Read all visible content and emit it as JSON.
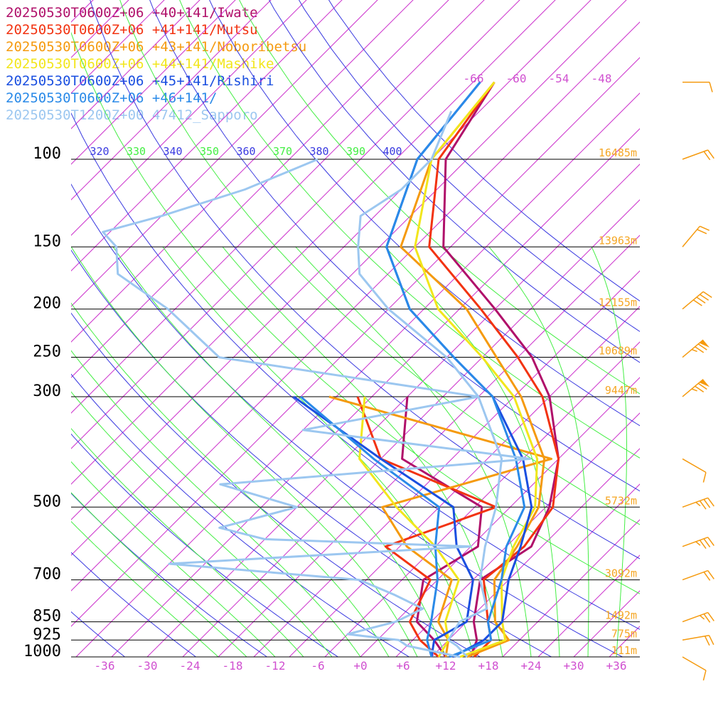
{
  "legend": [
    {
      "label": "20250530T0600Z+06 +40+141/Iwate",
      "color": "#b0106a"
    },
    {
      "label": "20250530T0600Z+06 +41+141/Mutsu",
      "color": "#f23311"
    },
    {
      "label": "20250530T0600Z+06 +43+141/Noboribetsu",
      "color": "#f59a0e"
    },
    {
      "label": "20250530T0600Z+06 +44+141/Mashike",
      "color": "#f2e61c"
    },
    {
      "label": "20250530T0600Z+06 +45+141/Rishiri",
      "color": "#1a4fe0"
    },
    {
      "label": "20250530T0600Z+06 +46+141/",
      "color": "#2a8ae8"
    },
    {
      "label": "20250530T1200Z+00 47412_Sapporo",
      "color": "#9cc7f0"
    }
  ],
  "chart_data": {
    "type": "line",
    "title": "",
    "xlabel": "",
    "ylabel": "",
    "pressure_ticks": [
      100,
      150,
      200,
      250,
      300,
      500,
      700,
      850,
      925,
      1000
    ],
    "height_labels": [
      "16485m",
      "13963m",
      "12155m",
      "10689m",
      "9447m",
      "5732m",
      "3092m",
      "1492m",
      "775m",
      "111m"
    ],
    "temperature_ticks": [
      "-36",
      "-30",
      "-24",
      "-18",
      "-12",
      "-6",
      "+0",
      "+6",
      "+12",
      "+18",
      "+24",
      "+30",
      "+36"
    ],
    "xlim": [
      -40,
      40
    ],
    "theta_labels": [
      "320",
      "330",
      "340",
      "350",
      "360",
      "370",
      "380",
      "390",
      "400"
    ],
    "top_temp_labels": [
      "-66",
      "-60",
      "-54",
      "-48"
    ],
    "grid": true,
    "colors": {
      "isotherm": "#cc33cc",
      "dry_adiabat": "#3a3ae0",
      "moist_adiabat": "#44ee44",
      "isobar": "#000000",
      "height_label": "#f5a623",
      "temp_tick": "#d050d0",
      "wind": "#f59a0e"
    },
    "series": [
      {
        "name": "20250530T0600Z+06 +40+141/Iwate",
        "color": "#b0106a",
        "temperature": [
          [
            1000,
            15.5
          ],
          [
            925,
            14
          ],
          [
            850,
            11
          ],
          [
            700,
            6
          ],
          [
            600,
            8.5
          ],
          [
            500,
            5.5
          ],
          [
            400,
            0
          ],
          [
            300,
            -10
          ],
          [
            250,
            -18
          ],
          [
            200,
            -30
          ],
          [
            150,
            -46
          ],
          [
            100,
            -58
          ],
          [
            70,
            -62
          ]
        ],
        "dewpoint": [
          [
            1000,
            12
          ],
          [
            925,
            8
          ],
          [
            850,
            3
          ],
          [
            700,
            -2
          ],
          [
            600,
            1
          ],
          [
            500,
            -4
          ],
          [
            400,
            -22
          ],
          [
            300,
            -30
          ]
        ]
      },
      {
        "name": "20250530T0600Z+06 +41+141/Mutsu",
        "color": "#f23311",
        "temperature": [
          [
            1000,
            16
          ],
          [
            925,
            16
          ],
          [
            850,
            13
          ],
          [
            700,
            6.5
          ],
          [
            600,
            7.5
          ],
          [
            500,
            6
          ],
          [
            400,
            0
          ],
          [
            300,
            -11
          ],
          [
            250,
            -20
          ],
          [
            200,
            -32
          ],
          [
            150,
            -48
          ],
          [
            100,
            -59
          ],
          [
            70,
            -62
          ]
        ],
        "dewpoint": [
          [
            1000,
            11
          ],
          [
            925,
            6
          ],
          [
            850,
            2
          ],
          [
            700,
            -1
          ],
          [
            600,
            -12
          ],
          [
            500,
            -2
          ],
          [
            400,
            -25
          ],
          [
            300,
            -37
          ]
        ]
      },
      {
        "name": "20250530T0600Z+06 +43+141/Noboribetsu",
        "color": "#f59a0e",
        "temperature": [
          [
            1000,
            15
          ],
          [
            925,
            18.5
          ],
          [
            850,
            14
          ],
          [
            700,
            8
          ],
          [
            600,
            6.5
          ],
          [
            500,
            4
          ],
          [
            400,
            -2
          ],
          [
            300,
            -14
          ],
          [
            250,
            -23
          ],
          [
            200,
            -34
          ],
          [
            150,
            -52
          ],
          [
            100,
            -60
          ],
          [
            70,
            -62
          ]
        ],
        "dewpoint": [
          [
            1000,
            12
          ],
          [
            925,
            10
          ],
          [
            850,
            6
          ],
          [
            700,
            2
          ],
          [
            600,
            -9
          ],
          [
            500,
            -18
          ],
          [
            400,
            -1
          ],
          [
            300,
            -41
          ]
        ]
      },
      {
        "name": "20250530T0600Z+06 +44+141/Mashike",
        "color": "#f2e61c",
        "temperature": [
          [
            1000,
            14
          ],
          [
            925,
            18
          ],
          [
            850,
            15
          ],
          [
            700,
            9
          ],
          [
            600,
            6
          ],
          [
            500,
            3.5
          ],
          [
            400,
            -3
          ],
          [
            300,
            -15
          ],
          [
            250,
            -25
          ],
          [
            200,
            -38
          ],
          [
            150,
            -50
          ],
          [
            100,
            -60
          ],
          [
            70,
            -62
          ]
        ],
        "dewpoint": [
          [
            1000,
            11
          ],
          [
            925,
            10
          ],
          [
            850,
            7
          ],
          [
            700,
            3
          ],
          [
            600,
            -5
          ],
          [
            500,
            -16
          ],
          [
            400,
            -28
          ],
          [
            300,
            -36
          ]
        ]
      },
      {
        "name": "20250530T0600Z+06 +45+141/Rishiri",
        "color": "#1a4fe0",
        "temperature": [
          [
            1000,
            13
          ],
          [
            925,
            15
          ],
          [
            850,
            15
          ],
          [
            700,
            10
          ],
          [
            600,
            7
          ],
          [
            500,
            3
          ],
          [
            400,
            -5
          ],
          [
            300,
            -18
          ],
          [
            250,
            -29
          ],
          [
            200,
            -42
          ],
          [
            150,
            -54
          ],
          [
            100,
            -62
          ],
          [
            70,
            -64
          ]
        ],
        "dewpoint": [
          [
            1000,
            10
          ],
          [
            925,
            8
          ],
          [
            850,
            10
          ],
          [
            700,
            5
          ],
          [
            600,
            -2
          ],
          [
            500,
            -8
          ],
          [
            400,
            -25
          ],
          [
            300,
            -46
          ]
        ]
      },
      {
        "name": "20250530T0600Z+06 +46+141/",
        "color": "#2a8ae8",
        "temperature": [
          [
            1000,
            12.5
          ],
          [
            925,
            16
          ],
          [
            850,
            13
          ],
          [
            700,
            9
          ],
          [
            600,
            5
          ],
          [
            500,
            2
          ],
          [
            400,
            -6
          ],
          [
            300,
            -18
          ],
          [
            250,
            -29
          ],
          [
            200,
            -42
          ],
          [
            150,
            -54
          ],
          [
            100,
            -62
          ],
          [
            70,
            -64
          ]
        ],
        "dewpoint": [
          [
            1000,
            10
          ],
          [
            925,
            7
          ],
          [
            850,
            5
          ],
          [
            700,
            0
          ],
          [
            600,
            -5
          ],
          [
            500,
            -10
          ],
          [
            400,
            -26
          ],
          [
            300,
            -45
          ]
        ]
      },
      {
        "name": "20250530T1200Z+00 47412_Sapporo",
        "color": "#9cc7f0",
        "temperature": [
          [
            1000,
            15
          ],
          [
            950,
            12
          ],
          [
            925,
            10
          ],
          [
            850,
            9
          ],
          [
            800,
            11
          ],
          [
            700,
            6
          ],
          [
            600,
            2
          ],
          [
            500,
            -2
          ],
          [
            400,
            -8
          ],
          [
            300,
            -20
          ],
          [
            250,
            -30
          ],
          [
            200,
            -45
          ],
          [
            170,
            -54
          ],
          [
            150,
            -58
          ],
          [
            130,
            -62
          ],
          [
            115,
            -60
          ],
          [
            100,
            -60
          ],
          [
            80,
            -64
          ]
        ],
        "dewpoint": [
          [
            1000,
            14
          ],
          [
            950,
            5
          ],
          [
            925,
            3
          ],
          [
            900,
            -5
          ],
          [
            850,
            0
          ],
          [
            800,
            2
          ],
          [
            750,
            -4
          ],
          [
            700,
            -11
          ],
          [
            650,
            -40
          ],
          [
            600,
            0
          ],
          [
            580,
            -30
          ],
          [
            550,
            -38
          ],
          [
            500,
            -30
          ],
          [
            450,
            -44
          ],
          [
            400,
            -4
          ],
          [
            350,
            -40
          ],
          [
            300,
            -20
          ],
          [
            250,
            -62
          ],
          [
            200,
            -76
          ],
          [
            170,
            -88
          ],
          [
            150,
            -92
          ],
          [
            140,
            -96
          ],
          [
            130,
            -90
          ],
          [
            115,
            -82
          ],
          [
            100,
            -76
          ]
        ]
      }
    ],
    "wind_barbs_knots": [
      {
        "pressure": 1000,
        "speed": 10,
        "dir": 300
      },
      {
        "pressure": 925,
        "speed": 20,
        "dir": 260
      },
      {
        "pressure": 850,
        "speed": 25,
        "dir": 250
      },
      {
        "pressure": 700,
        "speed": 20,
        "dir": 250
      },
      {
        "pressure": 600,
        "speed": 35,
        "dir": 250
      },
      {
        "pressure": 500,
        "speed": 35,
        "dir": 250
      },
      {
        "pressure": 400,
        "speed": 10,
        "dir": 300
      },
      {
        "pressure": 300,
        "speed": 75,
        "dir": 230
      },
      {
        "pressure": 250,
        "speed": 75,
        "dir": 230
      },
      {
        "pressure": 200,
        "speed": 40,
        "dir": 230
      },
      {
        "pressure": 150,
        "speed": 20,
        "dir": 220
      },
      {
        "pressure": 100,
        "speed": 20,
        "dir": 250
      },
      {
        "pressure": 70,
        "speed": 10,
        "dir": 270
      }
    ]
  }
}
